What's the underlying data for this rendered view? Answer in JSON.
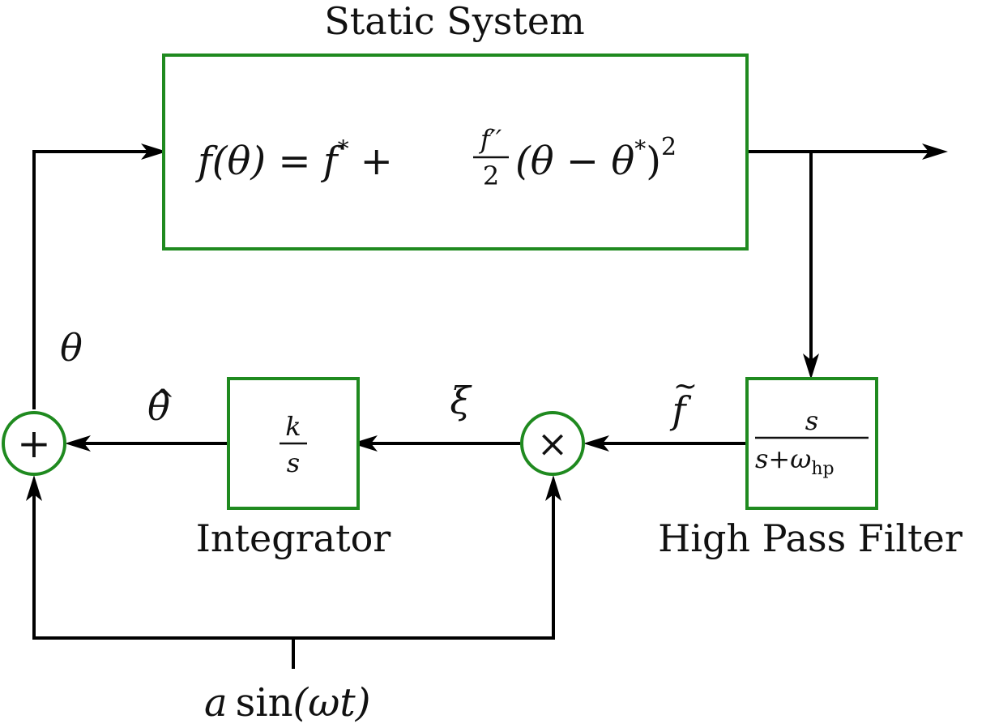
{
  "blocks": {
    "static_system": {
      "title": "Static System",
      "eq": {
        "lhs": "f(θ) = f",
        "star1": "*",
        "plus": "+",
        "frac_num": "f′′",
        "frac_den": "2",
        "paren": "(θ − θ",
        "star2": "*",
        "close": ")",
        "power": "2"
      }
    },
    "integrator": {
      "title": "Integrator",
      "num": "k",
      "den": "s"
    },
    "high_pass_filter": {
      "title": "High Pass Filter",
      "num": "s",
      "den_main": "s+ω",
      "den_sub": "hp"
    }
  },
  "junctions": {
    "sum_symbol": "+",
    "multiply_symbol": "×"
  },
  "signals": {
    "theta": "θ",
    "theta_hat": "θ",
    "theta_hat_accent": "^",
    "xi": "ξ",
    "f_tilde": "f",
    "f_tilde_accent": "~",
    "dither_a": "a",
    "dither_sin": "sin",
    "dither_arg": "(ωt)"
  },
  "colors": {
    "block_border": "#1f8a1f",
    "wire": "#000000"
  }
}
